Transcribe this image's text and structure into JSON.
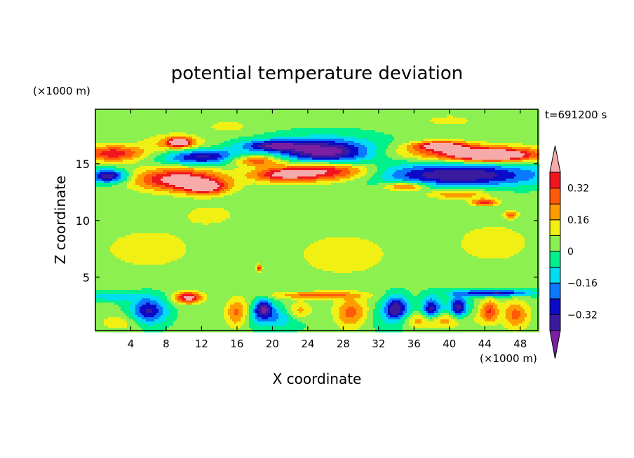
{
  "chart_data": {
    "type": "heatmap",
    "title": "potential temperature deviation",
    "xlabel": "X coordinate",
    "ylabel": "Z coordinate",
    "x_units": "(×1000 m)",
    "y_units": "(×1000 m)",
    "time_label": "t=691200 s",
    "xlim": [
      0,
      50
    ],
    "ylim": [
      0.3,
      19.8
    ],
    "x_ticks": [
      "4",
      "8",
      "12",
      "16",
      "20",
      "24",
      "28",
      "32",
      "36",
      "40",
      "44",
      "48"
    ],
    "x_tick_values": [
      4,
      8,
      12,
      16,
      20,
      24,
      28,
      32,
      36,
      40,
      44,
      48
    ],
    "y_ticks": [
      "5",
      "10",
      "15"
    ],
    "y_tick_values": [
      5,
      10,
      15
    ],
    "colorbar": {
      "levels": [
        -0.4,
        -0.32,
        -0.24,
        -0.16,
        -0.08,
        0,
        0.08,
        0.16,
        0.24,
        0.32,
        0.4
      ],
      "tick_labels": [
        "0.32",
        "0.16",
        "0",
        "−0.16",
        "−0.32"
      ],
      "tick_values": [
        0.32,
        0.16,
        0,
        -0.16,
        -0.32
      ],
      "colors": [
        "#7a1fa2",
        "#3a1a9e",
        "#0a0ac8",
        "#0a78ff",
        "#00dcf0",
        "#00f08c",
        "#8cf050",
        "#f0f014",
        "#ff9c00",
        "#ff5a0a",
        "#f0141e",
        "#f7aaaa"
      ]
    },
    "background_value": 0.02,
    "blobs": [
      {
        "x": 9,
        "z": 16.7,
        "rx": 3.5,
        "rz": 0.9,
        "v": 0.18
      },
      {
        "x": 9.5,
        "z": 16.9,
        "rx": 1.3,
        "rz": 0.4,
        "v": 0.45
      },
      {
        "x": 2,
        "z": 15.9,
        "rx": 3.5,
        "rz": 0.7,
        "v": 0.36
      },
      {
        "x": 12,
        "z": 15.6,
        "rx": 4.5,
        "rz": 0.7,
        "v": -0.38
      },
      {
        "x": 20,
        "z": 16.6,
        "rx": 3.5,
        "rz": 0.5,
        "v": -0.35
      },
      {
        "x": 26,
        "z": 16.0,
        "rx": 5.0,
        "rz": 1.1,
        "v": -0.38
      },
      {
        "x": 26,
        "z": 16.0,
        "rx": 7.0,
        "rz": 1.5,
        "v": -0.12
      },
      {
        "x": 18,
        "z": 15.3,
        "rx": 3.0,
        "rz": 0.5,
        "v": 0.32
      },
      {
        "x": 1.5,
        "z": 13.9,
        "rx": 2.0,
        "rz": 0.6,
        "v": -0.42
      },
      {
        "x": 9.5,
        "z": 13.6,
        "rx": 5.0,
        "rz": 1.0,
        "v": 0.45
      },
      {
        "x": 12.5,
        "z": 12.9,
        "rx": 2.5,
        "rz": 0.6,
        "v": 0.35
      },
      {
        "x": 26,
        "z": 14.4,
        "rx": 5.5,
        "rz": 0.9,
        "v": 0.46
      },
      {
        "x": 21,
        "z": 14.0,
        "rx": 3.5,
        "rz": 0.6,
        "v": 0.3
      },
      {
        "x": 41,
        "z": 14.0,
        "rx": 9.5,
        "rz": 1.0,
        "v": -0.42
      },
      {
        "x": 42,
        "z": 16.0,
        "rx": 8.0,
        "rz": 0.7,
        "v": 0.32
      },
      {
        "x": 45,
        "z": 15.7,
        "rx": 4.5,
        "rz": 0.5,
        "v": 0.45
      },
      {
        "x": 39,
        "z": 16.6,
        "rx": 3.0,
        "rz": 0.4,
        "v": 0.4
      },
      {
        "x": 35,
        "z": 13.0,
        "rx": 2.5,
        "rz": 0.4,
        "v": 0.3
      },
      {
        "x": 41,
        "z": 12.3,
        "rx": 3.5,
        "rz": 0.4,
        "v": 0.22
      },
      {
        "x": 44,
        "z": 11.6,
        "rx": 1.5,
        "rz": 0.3,
        "v": 0.33
      },
      {
        "x": 47,
        "z": 10.5,
        "rx": 0.8,
        "rz": 0.3,
        "v": 0.25
      },
      {
        "x": 6,
        "z": 2.0,
        "rx": 2.0,
        "rz": 1.2,
        "v": -0.36
      },
      {
        "x": 10.5,
        "z": 3.2,
        "rx": 1.5,
        "rz": 0.5,
        "v": 0.45
      },
      {
        "x": 16,
        "z": 1.8,
        "rx": 1.3,
        "rz": 1.2,
        "v": 0.28
      },
      {
        "x": 20,
        "z": 1.5,
        "rx": 3.5,
        "rz": 1.0,
        "v": -0.2
      },
      {
        "x": 19,
        "z": 2.3,
        "rx": 1.0,
        "rz": 0.8,
        "v": -0.36
      },
      {
        "x": 23,
        "z": 2.0,
        "rx": 1.5,
        "rz": 0.8,
        "v": 0.22
      },
      {
        "x": 29,
        "z": 1.8,
        "rx": 2.0,
        "rz": 1.3,
        "v": 0.3
      },
      {
        "x": 34,
        "z": 2.2,
        "rx": 1.3,
        "rz": 1.2,
        "v": -0.38
      },
      {
        "x": 38,
        "z": 2.1,
        "rx": 1.1,
        "rz": 1.1,
        "v": -0.38
      },
      {
        "x": 41,
        "z": 2.3,
        "rx": 1.1,
        "rz": 1.0,
        "v": -0.38
      },
      {
        "x": 38,
        "z": 1.2,
        "rx": 4.0,
        "rz": 0.7,
        "v": 0.25
      },
      {
        "x": 44.5,
        "z": 2.0,
        "rx": 1.0,
        "rz": 1.0,
        "v": 0.3
      },
      {
        "x": 47.5,
        "z": 1.7,
        "rx": 1.5,
        "rz": 1.2,
        "v": 0.25
      },
      {
        "x": 45,
        "z": 3.6,
        "rx": 4.5,
        "rz": 0.3,
        "v": -0.36
      },
      {
        "x": 2,
        "z": 3.3,
        "rx": 3.0,
        "rz": 0.4,
        "v": -0.16
      },
      {
        "x": 3,
        "z": 1.0,
        "rx": 3.0,
        "rz": 0.8,
        "v": 0.1
      },
      {
        "x": 25,
        "z": 3.4,
        "rx": 5.0,
        "rz": 0.3,
        "v": 0.24
      },
      {
        "x": 32,
        "z": 1.5,
        "rx": 4.0,
        "rz": 1.2,
        "v": -0.1
      },
      {
        "x": 6,
        "z": 7.5,
        "rx": 6.0,
        "rz": 2.0,
        "v": 0.1
      },
      {
        "x": 28,
        "z": 7.0,
        "rx": 7.0,
        "rz": 2.5,
        "v": 0.09
      },
      {
        "x": 45,
        "z": 8.0,
        "rx": 5.0,
        "rz": 2.0,
        "v": 0.1
      },
      {
        "x": 13,
        "z": 10.5,
        "rx": 4.0,
        "rz": 1.2,
        "v": 0.08
      },
      {
        "x": 18.5,
        "z": 5.8,
        "rx": 0.3,
        "rz": 0.3,
        "v": 0.32
      },
      {
        "x": 15,
        "z": 18.3,
        "rx": 2.5,
        "rz": 0.6,
        "v": 0.1
      },
      {
        "x": 40,
        "z": 18.8,
        "rx": 3.0,
        "rz": 0.5,
        "v": 0.1
      }
    ]
  }
}
